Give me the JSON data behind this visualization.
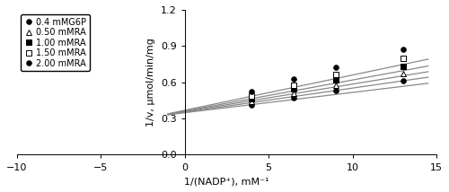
{
  "xlabel": "1/(NADP⁺), mM⁻¹",
  "ylabel": "1/v, μmol/min/mg",
  "xlim": [
    -10,
    15
  ],
  "ylim": [
    0,
    1.2
  ],
  "xticks": [
    -10,
    -5,
    0,
    5,
    10,
    15
  ],
  "yticks": [
    0,
    0.3,
    0.6,
    0.9,
    1.2
  ],
  "series": [
    {
      "label": "0.4 mMG6P",
      "marker": "o",
      "markerfacecolor": "black",
      "markeredgecolor": "black",
      "markersize": 4,
      "x_data": [
        4,
        6.5,
        9,
        13
      ],
      "y_data": [
        0.415,
        0.475,
        0.53,
        0.615
      ],
      "line_slope": 0.0168,
      "line_intercept": 0.348
    },
    {
      "label": "0.50 mMRA",
      "marker": "^",
      "markerfacecolor": "white",
      "markeredgecolor": "black",
      "markersize": 5,
      "x_data": [
        4,
        6.5,
        9,
        13
      ],
      "y_data": [
        0.44,
        0.51,
        0.575,
        0.672
      ],
      "line_slope": 0.02,
      "line_intercept": 0.352
    },
    {
      "label": "1.00 mMRA",
      "marker": "s",
      "markerfacecolor": "black",
      "markeredgecolor": "black",
      "markersize": 4,
      "x_data": [
        4,
        6.5,
        9,
        13
      ],
      "y_data": [
        0.462,
        0.543,
        0.618,
        0.733
      ],
      "line_slope": 0.0228,
      "line_intercept": 0.357
    },
    {
      "label": "1.50 mMRA",
      "marker": "s",
      "markerfacecolor": "white",
      "markeredgecolor": "black",
      "markersize": 5,
      "x_data": [
        4,
        6.5,
        9,
        13
      ],
      "y_data": [
        0.488,
        0.578,
        0.662,
        0.795
      ],
      "line_slope": 0.0257,
      "line_intercept": 0.362
    },
    {
      "label": "2.00 mMRA",
      "marker": "o",
      "markerfacecolor": "black",
      "markeredgecolor": "black",
      "markersize": 4,
      "x_data": [
        4,
        6.5,
        9,
        13
      ],
      "y_data": [
        0.522,
        0.625,
        0.722,
        0.875
      ],
      "line_slope": 0.0292,
      "line_intercept": 0.368
    }
  ],
  "legend_markers": [
    "o",
    "^",
    "s",
    "s",
    "o"
  ],
  "legend_filled": [
    true,
    false,
    true,
    false,
    true
  ],
  "legend_labels": [
    "0.4 mMG6P",
    "0.50 mMRA",
    "1.00 mMRA",
    "1.50 mMRA",
    "2.00 mMRA"
  ],
  "line_color": "#888888",
  "line_width": 0.9,
  "line_x_start": -1.0,
  "line_x_end": 14.5,
  "background_color": "white",
  "axis_label_fontsize": 8,
  "tick_fontsize": 8,
  "legend_fontsize": 7
}
